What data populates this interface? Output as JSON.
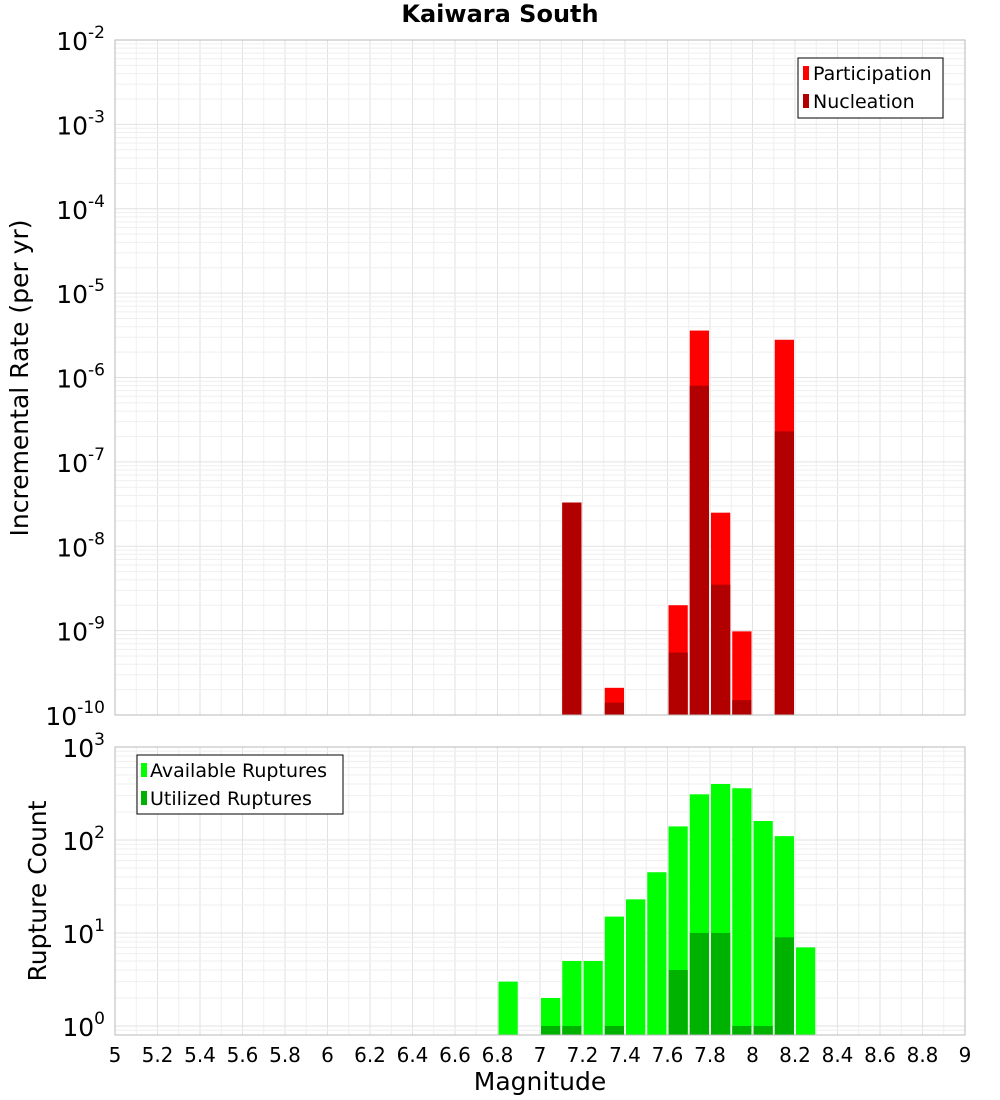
{
  "title": "Kaiwara South",
  "x_axis_label": "Magnitude",
  "chart_data": [
    {
      "type": "bar",
      "title": "Kaiwara South",
      "ylabel": "Incremental Rate (per yr)",
      "xlabel": "",
      "yscale": "log",
      "ylim": [
        1e-10,
        0.01
      ],
      "xlim": [
        5,
        9
      ],
      "legend_position": "top-right",
      "grid": true,
      "y_tick_bases": [
        "10",
        "10",
        "10",
        "10",
        "10",
        "10",
        "10",
        "10",
        "10"
      ],
      "y_tick_exponents": [
        "-10",
        "-9",
        "-8",
        "-7",
        "-6",
        "-5",
        "-4",
        "-3",
        "-2"
      ],
      "series": [
        {
          "name": "Participation",
          "color": "#ff0000",
          "x": [
            7.15,
            7.35,
            7.65,
            7.75,
            7.85,
            7.95,
            8.15
          ],
          "values": [
            3.3e-08,
            2.1e-10,
            2e-09,
            3.6e-06,
            2.5e-08,
            9.8e-10,
            2.8e-06
          ]
        },
        {
          "name": "Nucleation",
          "color": "#b20000",
          "x": [
            7.15,
            7.35,
            7.65,
            7.75,
            7.85,
            7.95,
            8.15
          ],
          "values": [
            3.3e-08,
            1.4e-10,
            5.5e-10,
            8e-07,
            3.5e-09,
            1.5e-10,
            2.3e-07
          ]
        }
      ]
    },
    {
      "type": "bar",
      "title": "",
      "ylabel": "Rupture Count",
      "xlabel": "Magnitude",
      "yscale": "log",
      "ylim": [
        0.8,
        1000
      ],
      "xlim": [
        5,
        9
      ],
      "legend_position": "top-left",
      "grid": true,
      "y_tick_bases": [
        "10",
        "10",
        "10",
        "10"
      ],
      "y_tick_exponents": [
        "0",
        "1",
        "2",
        "3"
      ],
      "x_ticks": [
        "5",
        "5.2",
        "5.4",
        "5.6",
        "5.8",
        "6",
        "6.2",
        "6.4",
        "6.6",
        "6.8",
        "7",
        "7.2",
        "7.4",
        "7.6",
        "7.8",
        "8",
        "8.2",
        "8.4",
        "8.6",
        "8.8",
        "9"
      ],
      "series": [
        {
          "name": "Available Ruptures",
          "color": "#00ff00",
          "x": [
            6.85,
            7.05,
            7.15,
            7.25,
            7.35,
            7.45,
            7.55,
            7.65,
            7.75,
            7.85,
            7.95,
            8.05,
            8.15,
            8.25
          ],
          "values": [
            3,
            2,
            5,
            5,
            15,
            23,
            45,
            140,
            310,
            400,
            360,
            160,
            110,
            7
          ]
        },
        {
          "name": "Utilized Ruptures",
          "color": "#00b200",
          "x": [
            7.05,
            7.15,
            7.35,
            7.65,
            7.75,
            7.85,
            7.95,
            8.05,
            8.15
          ],
          "values": [
            1,
            1,
            1,
            4,
            10,
            10,
            1,
            1,
            9
          ]
        }
      ]
    }
  ]
}
